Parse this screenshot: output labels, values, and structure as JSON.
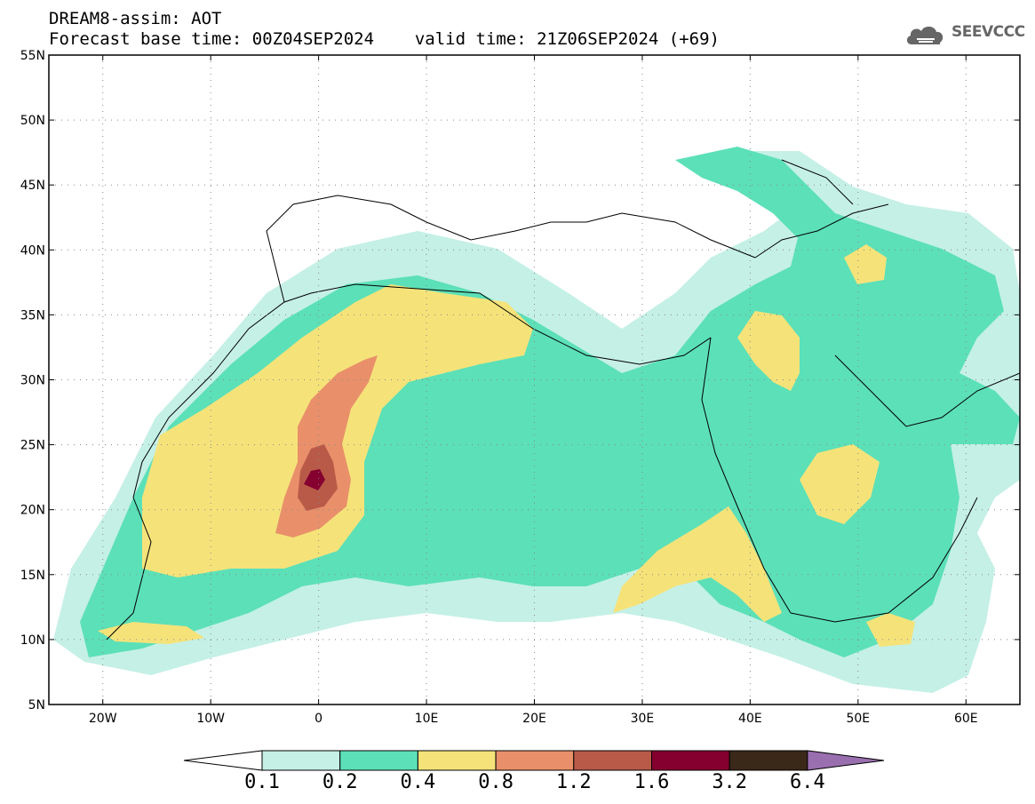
{
  "header": {
    "title": "DREAM8-assim: AOT",
    "base_time_label": "Forecast base time: 00Z04SEP2024",
    "valid_time_label": "valid time: 21Z06SEP2024 (+69)"
  },
  "logo": {
    "text": "SEEVCCC",
    "icon": "cloud-icon"
  },
  "map": {
    "lon_range": [
      -25,
      65
    ],
    "lat_range": [
      5,
      55
    ],
    "lon_ticks": [
      "20W",
      "10W",
      "0",
      "10E",
      "20E",
      "30E",
      "40E",
      "50E",
      "60E"
    ],
    "lat_ticks": [
      "55N",
      "50N",
      "45N",
      "40N",
      "35N",
      "30N",
      "25N",
      "20N",
      "15N",
      "10N",
      "5N"
    ]
  },
  "colorbar": {
    "levels": [
      "0.1",
      "0.2",
      "0.4",
      "0.8",
      "1.2",
      "1.6",
      "3.2",
      "6.4"
    ],
    "colors": [
      "#ffffff",
      "#c5f0e6",
      "#5ce0b8",
      "#f5e37a",
      "#e9906a",
      "#b95a49",
      "#85002e",
      "#3a2818",
      "#9a6fb0"
    ]
  }
}
